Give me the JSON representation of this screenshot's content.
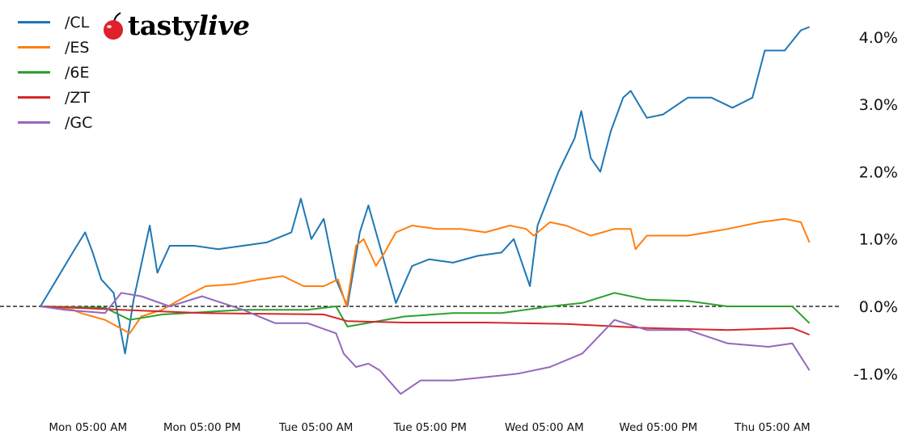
{
  "logo": {
    "text": "tastylive",
    "icon": "cherry-icon"
  },
  "chart_data": {
    "type": "line",
    "title": "",
    "xlabel": "",
    "ylabel": "",
    "x_format": "weekday HH:MM",
    "xlim": [
      "Mon 00:00",
      "Thu 08:54"
    ],
    "ylim": [
      -1.5,
      4.4
    ],
    "y_unit": "%",
    "y_axis_side": "right",
    "grid": false,
    "zero_line": {
      "value": 0,
      "style": "dashed",
      "color": "#000000"
    },
    "legend_placement": "top-left",
    "x_ticks": [
      {
        "value": "Mon 05:00",
        "label": "Mon 05:00 AM"
      },
      {
        "value": "Mon 17:00",
        "label": "Mon 05:00 PM"
      },
      {
        "value": "Tue 05:00",
        "label": "Tue 05:00 AM"
      },
      {
        "value": "Tue 17:00",
        "label": "Tue 05:00 PM"
      },
      {
        "value": "Wed 05:00",
        "label": "Wed 05:00 AM"
      },
      {
        "value": "Wed 17:00",
        "label": "Wed 05:00 PM"
      },
      {
        "value": "Thu 05:00",
        "label": "Thu 05:00 AM"
      }
    ],
    "y_ticks": [
      {
        "value": 4,
        "label": "4.0%"
      },
      {
        "value": 3,
        "label": "3.0%"
      },
      {
        "value": 2,
        "label": "2.0%"
      },
      {
        "value": 1,
        "label": "1.0%"
      },
      {
        "value": 0,
        "label": "0.0%"
      },
      {
        "value": -1,
        "label": "-1.0%"
      }
    ],
    "series": [
      {
        "name": "/CL",
        "color": "#1f77b4",
        "points": [
          [
            "Mon 00:00",
            0
          ],
          [
            "Mon 01:42",
            0.4
          ],
          [
            "Mon 03:24",
            0.8
          ],
          [
            "Mon 04:42",
            1.1
          ],
          [
            "Mon 05:30",
            0.8
          ],
          [
            "Mon 06:24",
            0.4
          ],
          [
            "Mon 07:42",
            0.2
          ],
          [
            "Mon 08:54",
            -0.7
          ],
          [
            "Mon 09:48",
            0.1
          ],
          [
            "Mon 11:30",
            1.2
          ],
          [
            "Mon 12:18",
            0.5
          ],
          [
            "Mon 13:36",
            0.9
          ],
          [
            "Mon 16:12",
            0.9
          ],
          [
            "Mon 18:42",
            0.85
          ],
          [
            "Mon 21:18",
            0.9
          ],
          [
            "Mon 23:48",
            0.95
          ],
          [
            "Tue 02:24",
            1.1
          ],
          [
            "Tue 03:24",
            1.6
          ],
          [
            "Tue 04:30",
            1.0
          ],
          [
            "Tue 05:48",
            1.3
          ],
          [
            "Tue 07:06",
            0.4
          ],
          [
            "Tue 08:18",
            0.0
          ],
          [
            "Tue 09:36",
            1.1
          ],
          [
            "Tue 10:30",
            1.5
          ],
          [
            "Tue 11:42",
            0.9
          ],
          [
            "Tue 13:24",
            0.05
          ],
          [
            "Tue 15:06",
            0.6
          ],
          [
            "Tue 16:54",
            0.7
          ],
          [
            "Tue 19:24",
            0.65
          ],
          [
            "Tue 22:00",
            0.75
          ],
          [
            "Wed 00:30",
            0.8
          ],
          [
            "Wed 01:48",
            1.0
          ],
          [
            "Wed 03:30",
            0.3
          ],
          [
            "Wed 04:18",
            1.2
          ],
          [
            "Wed 06:30",
            2.0
          ],
          [
            "Wed 08:12",
            2.5
          ],
          [
            "Wed 08:54",
            2.9
          ],
          [
            "Wed 09:54",
            2.2
          ],
          [
            "Wed 10:54",
            2.0
          ],
          [
            "Wed 12:00",
            2.6
          ],
          [
            "Wed 13:18",
            3.1
          ],
          [
            "Wed 14:06",
            3.2
          ],
          [
            "Wed 15:48",
            2.8
          ],
          [
            "Wed 17:30",
            2.85
          ],
          [
            "Wed 20:06",
            3.1
          ],
          [
            "Wed 22:36",
            3.1
          ],
          [
            "Thu 00:48",
            2.95
          ],
          [
            "Thu 02:54",
            3.1
          ],
          [
            "Thu 04:12",
            3.8
          ],
          [
            "Thu 06:18",
            3.8
          ],
          [
            "Thu 08:00",
            4.1
          ],
          [
            "Thu 08:54",
            4.15
          ]
        ]
      },
      {
        "name": "/ES",
        "color": "#ff7f0e",
        "points": [
          [
            "Mon 00:00",
            0
          ],
          [
            "Mon 03:24",
            -0.05
          ],
          [
            "Mon 04:15",
            -0.1
          ],
          [
            "Mon 06:48",
            -0.2
          ],
          [
            "Mon 09:24",
            -0.4
          ],
          [
            "Mon 10:36",
            -0.15
          ],
          [
            "Mon 12:48",
            -0.05
          ],
          [
            "Mon 15:18",
            0.15
          ],
          [
            "Mon 17:24",
            0.3
          ],
          [
            "Mon 20:24",
            0.33
          ],
          [
            "Mon 23:00",
            0.4
          ],
          [
            "Tue 01:30",
            0.45
          ],
          [
            "Tue 03:42",
            0.3
          ],
          [
            "Tue 05:48",
            0.3
          ],
          [
            "Tue 07:18",
            0.4
          ],
          [
            "Tue 08:12",
            0.0
          ],
          [
            "Tue 09:12",
            0.9
          ],
          [
            "Tue 10:00",
            1.0
          ],
          [
            "Tue 11:18",
            0.6
          ],
          [
            "Tue 12:12",
            0.8
          ],
          [
            "Tue 13:24",
            1.1
          ],
          [
            "Tue 15:06",
            1.2
          ],
          [
            "Tue 17:42",
            1.15
          ],
          [
            "Tue 20:18",
            1.15
          ],
          [
            "Tue 22:48",
            1.1
          ],
          [
            "Wed 01:24",
            1.2
          ],
          [
            "Wed 03:06",
            1.15
          ],
          [
            "Wed 03:54",
            1.05
          ],
          [
            "Wed 05:36",
            1.25
          ],
          [
            "Wed 07:18",
            1.2
          ],
          [
            "Wed 09:54",
            1.05
          ],
          [
            "Wed 12:24",
            1.15
          ],
          [
            "Wed 14:06",
            1.15
          ],
          [
            "Wed 14:36",
            0.85
          ],
          [
            "Wed 15:48",
            1.05
          ],
          [
            "Wed 20:06",
            1.05
          ],
          [
            "Thu 00:18",
            1.15
          ],
          [
            "Thu 03:42",
            1.25
          ],
          [
            "Thu 06:18",
            1.3
          ],
          [
            "Thu 08:00",
            1.25
          ],
          [
            "Thu 08:54",
            0.95
          ]
        ]
      },
      {
        "name": "/6E",
        "color": "#2ca02c",
        "points": [
          [
            "Mon 00:00",
            0
          ],
          [
            "Mon 06:48",
            -0.02
          ],
          [
            "Mon 09:24",
            -0.2
          ],
          [
            "Mon 12:48",
            -0.12
          ],
          [
            "Mon 21:18",
            -0.05
          ],
          [
            "Tue 04:06",
            -0.05
          ],
          [
            "Tue 07:06",
            0.0
          ],
          [
            "Tue 08:18",
            -0.3
          ],
          [
            "Tue 14:18",
            -0.15
          ],
          [
            "Tue 19:24",
            -0.1
          ],
          [
            "Wed 00:30",
            -0.1
          ],
          [
            "Wed 05:36",
            0.0
          ],
          [
            "Wed 09:00",
            0.05
          ],
          [
            "Wed 12:24",
            0.2
          ],
          [
            "Wed 15:48",
            0.1
          ],
          [
            "Wed 20:06",
            0.08
          ],
          [
            "Thu 00:18",
            0.0
          ],
          [
            "Thu 07:06",
            0.0
          ],
          [
            "Thu 08:54",
            -0.25
          ]
        ]
      },
      {
        "name": "/ZT",
        "color": "#d62728",
        "points": [
          [
            "Mon 00:00",
            0
          ],
          [
            "Mon 08:30",
            -0.05
          ],
          [
            "Mon 17:00",
            -0.1
          ],
          [
            "Tue 05:48",
            -0.12
          ],
          [
            "Tue 08:18",
            -0.22
          ],
          [
            "Tue 14:18",
            -0.24
          ],
          [
            "Tue 22:48",
            -0.24
          ],
          [
            "Wed 07:18",
            -0.26
          ],
          [
            "Wed 15:48",
            -0.32
          ],
          [
            "Thu 00:18",
            -0.35
          ],
          [
            "Thu 07:06",
            -0.32
          ],
          [
            "Thu 08:54",
            -0.42
          ]
        ]
      },
      {
        "name": "/GC",
        "color": "#9467bd",
        "points": [
          [
            "Mon 00:00",
            0
          ],
          [
            "Mon 02:33",
            -0.05
          ],
          [
            "Mon 06:48",
            -0.1
          ],
          [
            "Mon 08:30",
            0.2
          ],
          [
            "Mon 10:36",
            0.15
          ],
          [
            "Mon 13:36",
            0.0
          ],
          [
            "Mon 17:00",
            0.15
          ],
          [
            "Mon 21:18",
            -0.05
          ],
          [
            "Tue 00:42",
            -0.25
          ],
          [
            "Tue 04:06",
            -0.25
          ],
          [
            "Tue 07:06",
            -0.4
          ],
          [
            "Tue 07:54",
            -0.7
          ],
          [
            "Tue 09:12",
            -0.9
          ],
          [
            "Tue 10:30",
            -0.85
          ],
          [
            "Tue 11:42",
            -0.95
          ],
          [
            "Tue 13:54",
            -1.3
          ],
          [
            "Tue 16:00",
            -1.1
          ],
          [
            "Tue 19:24",
            -1.1
          ],
          [
            "Tue 22:48",
            -1.05
          ],
          [
            "Wed 02:12",
            -1.0
          ],
          [
            "Wed 05:36",
            -0.9
          ],
          [
            "Wed 09:00",
            -0.7
          ],
          [
            "Wed 12:24",
            -0.2
          ],
          [
            "Wed 15:48",
            -0.35
          ],
          [
            "Wed 20:06",
            -0.35
          ],
          [
            "Thu 00:18",
            -0.55
          ],
          [
            "Thu 04:36",
            -0.6
          ],
          [
            "Thu 07:06",
            -0.55
          ],
          [
            "Thu 08:54",
            -0.95
          ]
        ]
      }
    ]
  }
}
